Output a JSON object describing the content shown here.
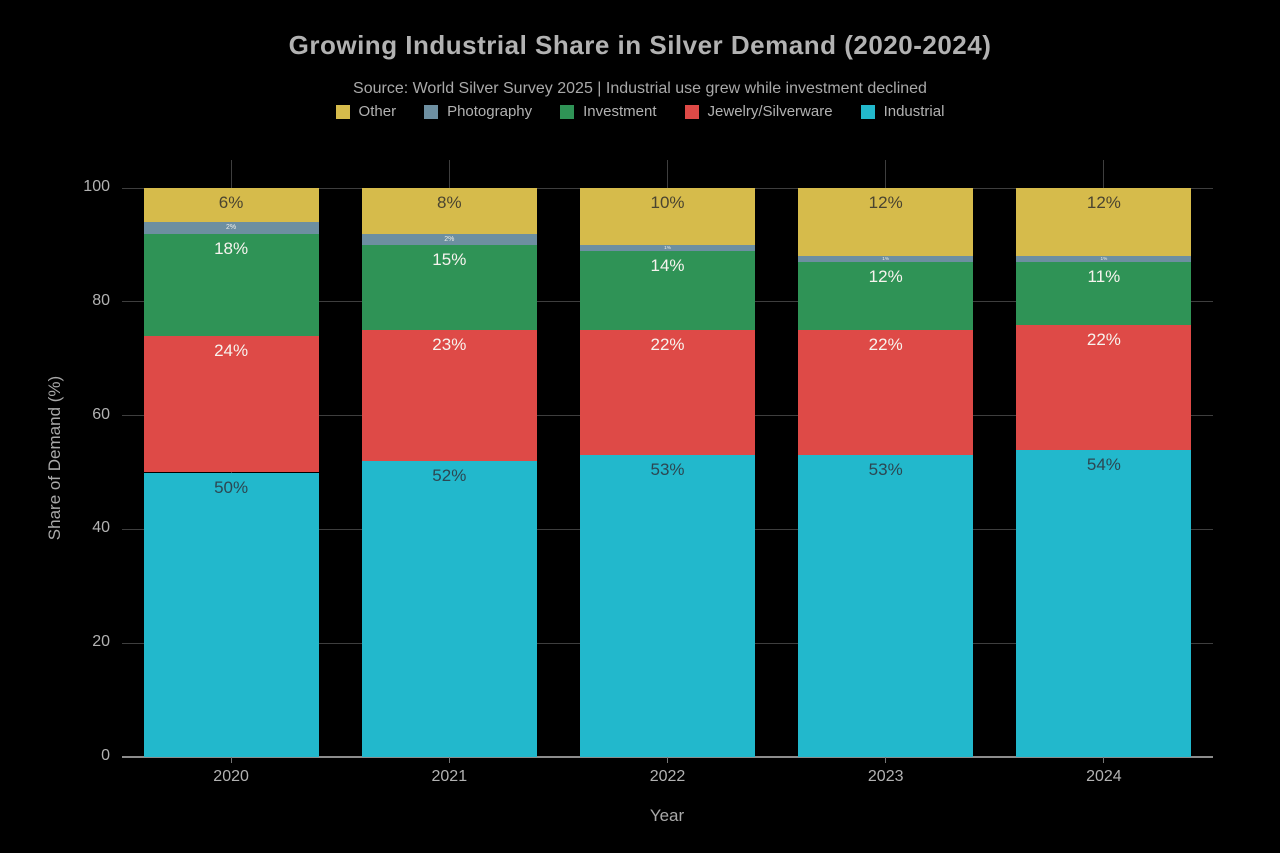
{
  "colors": {
    "background": "#000000",
    "text": "#b2b2b2",
    "grid": "#3e3e3e",
    "zero_line": "#8c8c8c"
  },
  "chart_data": {
    "type": "bar",
    "stacked": true,
    "title": "Growing Industrial Share in Silver Demand (2020-2024)",
    "subtitle": "Source: World Silver Survey 2025 | Industrial use grew while investment declined",
    "xlabel": "Year",
    "ylabel": "Share of Demand (%)",
    "categories": [
      "2020",
      "2021",
      "2022",
      "2023",
      "2024"
    ],
    "series": [
      {
        "name": "Industrial",
        "color": "#22b8cc",
        "values": [
          50,
          52,
          53,
          53,
          54
        ],
        "label_color": "#2c4752",
        "label_style": "normal"
      },
      {
        "name": "Jewelry/Silverware",
        "color": "#de4a47",
        "values": [
          24,
          23,
          22,
          22,
          22
        ],
        "label_color": "#f7f3ee",
        "label_style": "normal"
      },
      {
        "name": "Investment",
        "color": "#2f9356",
        "values": [
          18,
          15,
          14,
          12,
          11
        ],
        "label_color": "#f7f3ee",
        "label_style": "normal"
      },
      {
        "name": "Photography",
        "color": "#6d8fa1",
        "values": [
          2,
          2,
          1,
          1,
          1
        ],
        "label_color": "#f0efe9",
        "label_style": "tiny"
      },
      {
        "name": "Other",
        "color": "#d6bb4b",
        "values": [
          6,
          8,
          10,
          12,
          12
        ],
        "label_color": "#4a4430",
        "label_style": "normal"
      }
    ],
    "legend_order": [
      "Other",
      "Photography",
      "Investment",
      "Jewelry/Silverware",
      "Industrial"
    ],
    "legend_position": "top",
    "grid": true,
    "ylim": [
      0,
      105
    ],
    "yticks": [
      0,
      20,
      40,
      60,
      80,
      100
    ],
    "value_suffix": "%"
  }
}
